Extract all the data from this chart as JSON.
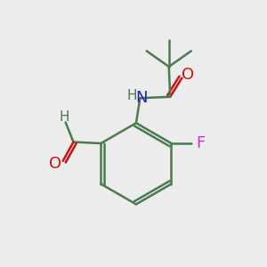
{
  "background_color": "#ececec",
  "bond_color": "#4a7a50",
  "N_color": "#2222bb",
  "O_color": "#cc1111",
  "F_color": "#cc33cc",
  "H_color": "#4a7a50",
  "line_width": 1.8,
  "figsize": [
    3.0,
    3.0
  ],
  "dpi": 100,
  "xlim": [
    0,
    10
  ],
  "ylim": [
    0,
    10
  ]
}
